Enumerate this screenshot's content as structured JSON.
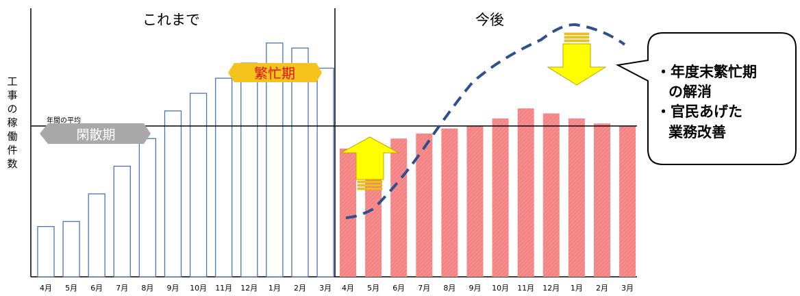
{
  "chart_data": {
    "type": "bar",
    "ylabel": "工事の稼働件数",
    "reference_line_label": "年間の平均",
    "reference_line_value": 60,
    "ylim": [
      0,
      100
    ],
    "series": [
      {
        "name": "これまで",
        "categories": [
          "4月",
          "5月",
          "6月",
          "7月",
          "8月",
          "9月",
          "10月",
          "11月",
          "12月",
          "1月",
          "2月",
          "3月"
        ],
        "values": [
          20,
          22,
          33,
          44,
          55,
          66,
          73,
          79,
          85,
          93,
          91,
          83
        ]
      },
      {
        "name": "今後",
        "categories": [
          "4月",
          "5月",
          "6月",
          "7月",
          "8月",
          "9月",
          "10月",
          "11月",
          "12月",
          "1月",
          "2月",
          "3月"
        ],
        "values": [
          51,
          53,
          55,
          57,
          59,
          60,
          63,
          67,
          65,
          63,
          61,
          60
        ]
      }
    ],
    "annotations": {
      "quiet_period": "閑散期",
      "busy_period": "繁忙期",
      "callout_lines": [
        "・年度末繁忙期",
        "の解消",
        "・官民あげた",
        "業務改善"
      ]
    }
  },
  "colors": {
    "past_bar_stroke": "#4a72b8",
    "future_bar_fill": "#f48484",
    "busy_label_fill": "#f6c21c",
    "busy_label_text": "#e01010",
    "quiet_label_fill": "#a9a9a9",
    "arrow_fill": "#ffff00",
    "arrow_stroke": "#c8a000",
    "trend_line": "#2f4f8f"
  }
}
